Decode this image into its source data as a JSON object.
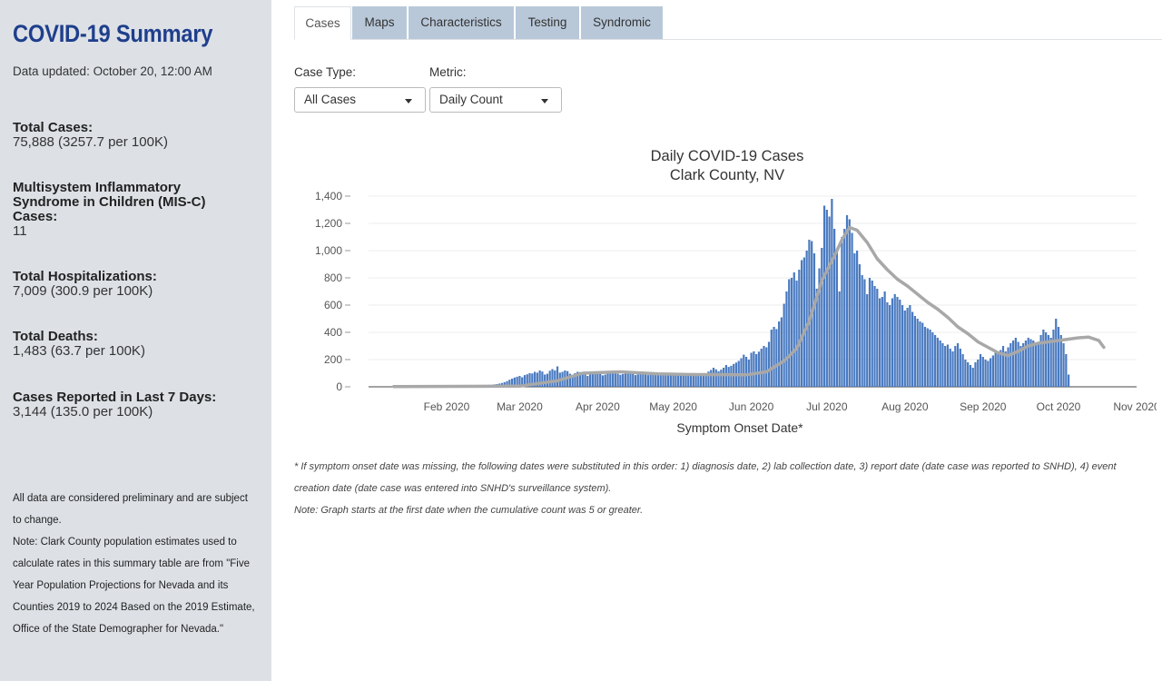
{
  "sidebar": {
    "title": "COVID-19 Summary",
    "updated": "Data updated: October 20, 12:00 AM",
    "stats": [
      {
        "label": "Total Cases:",
        "value": "75,888 (3257.7 per 100K)"
      },
      {
        "label": "Multisystem Inflammatory Syndrome in Children (MIS-C) Cases:",
        "value": "11"
      },
      {
        "label": "Total Hospitalizations:",
        "value": "7,009 (300.9 per 100K)"
      },
      {
        "label": "Total Deaths:",
        "value": "1,483 (63.7 per 100K)"
      },
      {
        "label": "Cases Reported in Last 7 Days:",
        "value": "3,144 (135.0 per 100K)"
      }
    ],
    "note1": "All data are considered preliminary and are subject to change.",
    "note2": "Note: Clark County population estimates used to calculate rates in this summary table are from \"Five Year Population Projections for Nevada and its Counties 2019 to 2024 Based on the 2019 Estimate, Office of the State Demographer for Nevada.\""
  },
  "tabs": [
    "Cases",
    "Maps",
    "Characteristics",
    "Testing",
    "Syndromic"
  ],
  "active_tab": "Cases",
  "filters": {
    "case_type_label": "Case Type:",
    "case_type_value": "All Cases",
    "metric_label": "Metric:",
    "metric_value": "Daily Count"
  },
  "footnotes": {
    "f1": "* If symptom onset date was missing, the following dates were substituted in this order: 1) diagnosis date, 2) lab collection date, 3) report date (date case was reported to SNHD), 4) event creation date (date case was entered into SNHD's surveillance system).",
    "f2": "Note: Graph starts at the first date when the cumulative count was 5 or greater."
  },
  "colors": {
    "bar": "#4a7ac0",
    "trend": "#a8a8a8",
    "title": "#1f3f8c",
    "sidebar": "#dde1e6",
    "tab": "#b8c8d9"
  },
  "chart_data": {
    "type": "bar",
    "title": "Daily COVID-19 Cases",
    "subtitle": "Clark County, NV",
    "xlabel": "Symptom Onset Date*",
    "ylabel": "",
    "ylim": [
      0,
      1400
    ],
    "yticks": [
      "0",
      "200",
      "400",
      "600",
      "800",
      "1,000",
      "1,200",
      "1,400"
    ],
    "ytick_values": [
      0,
      200,
      400,
      600,
      800,
      1000,
      1200,
      1400
    ],
    "xticks": [
      "Feb 2020",
      "Mar 2020",
      "Apr 2020",
      "May 2020",
      "Jun 2020",
      "Jul 2020",
      "Aug 2020",
      "Sep 2020",
      "Oct 2020",
      "Nov 2020"
    ],
    "xtick_days": [
      31,
      60,
      91,
      121,
      152,
      182,
      213,
      244,
      274,
      305
    ],
    "x_start": "2020-01-01",
    "x_range_days": [
      0,
      305
    ],
    "series": [
      {
        "name": "Daily Cases",
        "start_day": 10,
        "values": [
          2,
          1,
          3,
          2,
          1,
          3,
          2,
          2,
          4,
          3,
          2,
          3,
          5,
          4,
          3,
          2,
          4,
          3,
          5,
          4,
          3,
          4,
          6,
          5,
          4,
          5,
          6,
          5,
          7,
          6,
          7,
          8,
          7,
          9,
          10,
          8,
          11,
          12,
          14,
          15,
          18,
          20,
          24,
          28,
          34,
          42,
          52,
          60,
          68,
          74,
          80,
          70,
          86,
          92,
          100,
          98,
          110,
          104,
          120,
          112,
          90,
          96,
          118,
          130,
          120,
          150,
          104,
          110,
          120,
          115,
          96,
          84,
          100,
          110,
          108,
          102,
          92,
          80,
          96,
          104,
          112,
          106,
          100,
          84,
          90,
          108,
          116,
          118,
          112,
          96,
          88,
          94,
          102,
          110,
          104,
          98,
          86,
          92,
          100,
          96,
          90,
          86,
          88,
          92,
          96,
          100,
          94,
          88,
          84,
          90,
          96,
          92,
          88,
          94,
          100,
          96,
          90,
          84,
          92,
          96,
          98,
          92,
          86,
          90,
          100,
          112,
          124,
          140,
          128,
          114,
          126,
          140,
          160,
          146,
          154,
          168,
          178,
          190,
          210,
          236,
          220,
          200,
          250,
          260,
          240,
          258,
          280,
          300,
          290,
          330,
          420,
          440,
          424,
          480,
          510,
          610,
          700,
          790,
          800,
          840,
          780,
          860,
          930,
          950,
          1000,
          1080,
          1070,
          980,
          720,
          870,
          1020,
          1330,
          1300,
          1250,
          1380,
          1160,
          1000,
          700,
          1100,
          1160,
          1260,
          1230,
          1130,
          980,
          1000,
          900,
          820,
          790,
          680,
          800,
          780,
          740,
          720,
          650,
          660,
          700,
          620,
          600,
          650,
          680,
          660,
          640,
          600,
          560,
          580,
          600,
          550,
          520,
          500,
          480,
          470,
          440,
          430,
          420,
          400,
          380,
          360,
          340,
          320,
          300,
          310,
          280,
          260,
          300,
          320,
          280,
          240,
          200,
          180,
          160,
          140,
          180,
          200,
          240,
          220,
          200,
          190,
          210,
          230,
          250,
          260,
          270,
          300,
          260,
          290,
          320,
          340,
          360,
          330,
          300,
          320,
          340,
          360,
          350,
          340,
          320,
          330,
          380,
          420,
          400,
          380,
          360,
          420,
          500,
          440,
          380,
          320,
          240,
          90
        ]
      },
      {
        "name": "7-day average",
        "type": "line",
        "points": [
          [
            10,
            2
          ],
          [
            60,
            5
          ],
          [
            75,
            45
          ],
          [
            85,
            100
          ],
          [
            100,
            110
          ],
          [
            115,
            95
          ],
          [
            130,
            90
          ],
          [
            150,
            88
          ],
          [
            158,
            110
          ],
          [
            165,
            190
          ],
          [
            170,
            280
          ],
          [
            175,
            480
          ],
          [
            180,
            780
          ],
          [
            185,
            960
          ],
          [
            188,
            1080
          ],
          [
            191,
            1170
          ],
          [
            194,
            1150
          ],
          [
            198,
            1060
          ],
          [
            202,
            940
          ],
          [
            206,
            860
          ],
          [
            210,
            790
          ],
          [
            214,
            740
          ],
          [
            218,
            680
          ],
          [
            222,
            620
          ],
          [
            226,
            570
          ],
          [
            230,
            510
          ],
          [
            234,
            440
          ],
          [
            238,
            390
          ],
          [
            242,
            330
          ],
          [
            246,
            290
          ],
          [
            250,
            250
          ],
          [
            254,
            230
          ],
          [
            258,
            260
          ],
          [
            262,
            300
          ],
          [
            266,
            320
          ],
          [
            270,
            330
          ],
          [
            274,
            340
          ],
          [
            278,
            350
          ],
          [
            282,
            360
          ],
          [
            286,
            365
          ],
          [
            290,
            340
          ],
          [
            292,
            290
          ]
        ]
      }
    ]
  }
}
